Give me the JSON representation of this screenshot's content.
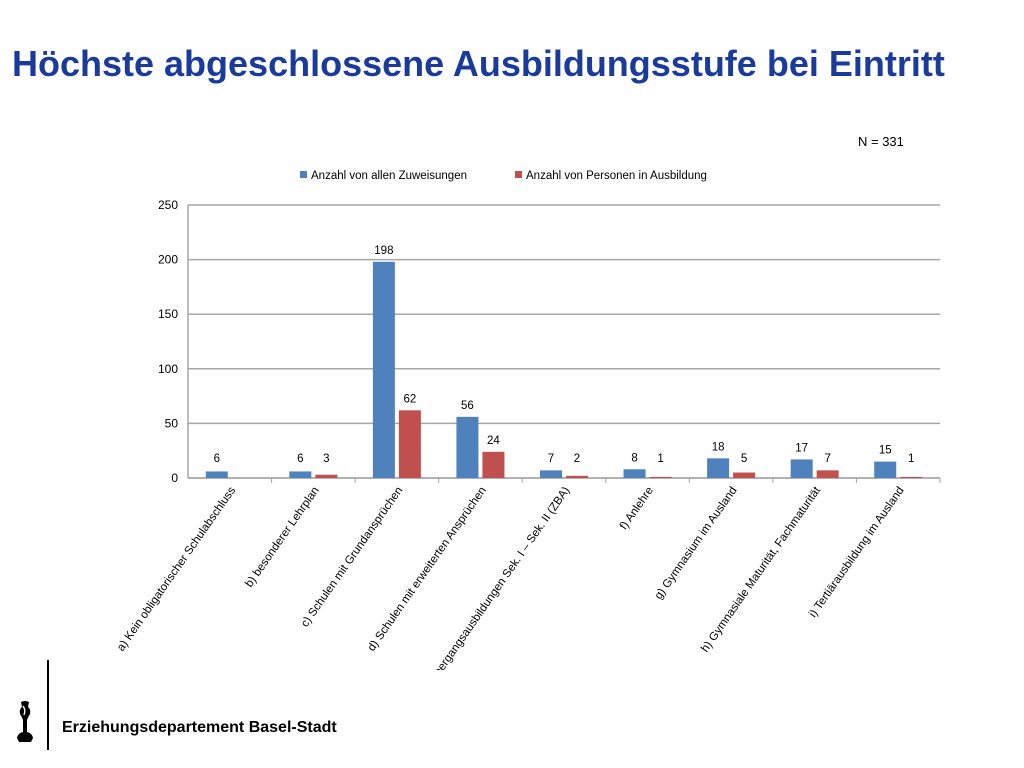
{
  "slide": {
    "title": "Höchste abgeschlossene Ausbildungsstufe bei Eintritt",
    "n_note": "N = 331",
    "footer_text": "Erziehungsdepartement Basel-Stadt",
    "logo_icon": "basel-staff-icon"
  },
  "colors": {
    "title": "#1a3a9c",
    "series1": "#4f81bd",
    "series2": "#c0504d",
    "grid": "#a6a6a6"
  },
  "chart_data": {
    "type": "bar",
    "title": "",
    "xlabel": "",
    "ylabel": "",
    "ylim": [
      0,
      250
    ],
    "yticks": [
      0,
      50,
      100,
      150,
      200,
      250
    ],
    "grid": true,
    "legend_position": "top",
    "categories": [
      "a) Kein obligatorischer Schulabschluss",
      "b) besonderer Lehrplan",
      "c) Schulen mit Grundansprüchen",
      "d) Schulen mit erweiterten Ansprüchen",
      "e) Übergangsausbildungen Sek. I – Sek. II (ZBA)",
      "f) Anlehre",
      "g) Gymnasium im Ausland",
      "h) Gymnasiale Maturität, Fachmaturität",
      "i) Tertiärausbildung im Ausland"
    ],
    "series": [
      {
        "name": "Anzahl von allen Zuweisungen",
        "color": "#4f81bd",
        "values": [
          6,
          6,
          198,
          56,
          7,
          8,
          18,
          17,
          15
        ],
        "labels": [
          "6",
          "6",
          "198",
          "56",
          "7",
          "8",
          "18",
          "17",
          "15"
        ]
      },
      {
        "name": "Anzahl von Personen in Ausbildung",
        "color": "#c0504d",
        "values": [
          0,
          3,
          62,
          24,
          2,
          1,
          5,
          7,
          1
        ],
        "labels": [
          "",
          "3",
          "62",
          "24",
          "2",
          "1",
          "5",
          "7",
          "1"
        ]
      }
    ]
  }
}
